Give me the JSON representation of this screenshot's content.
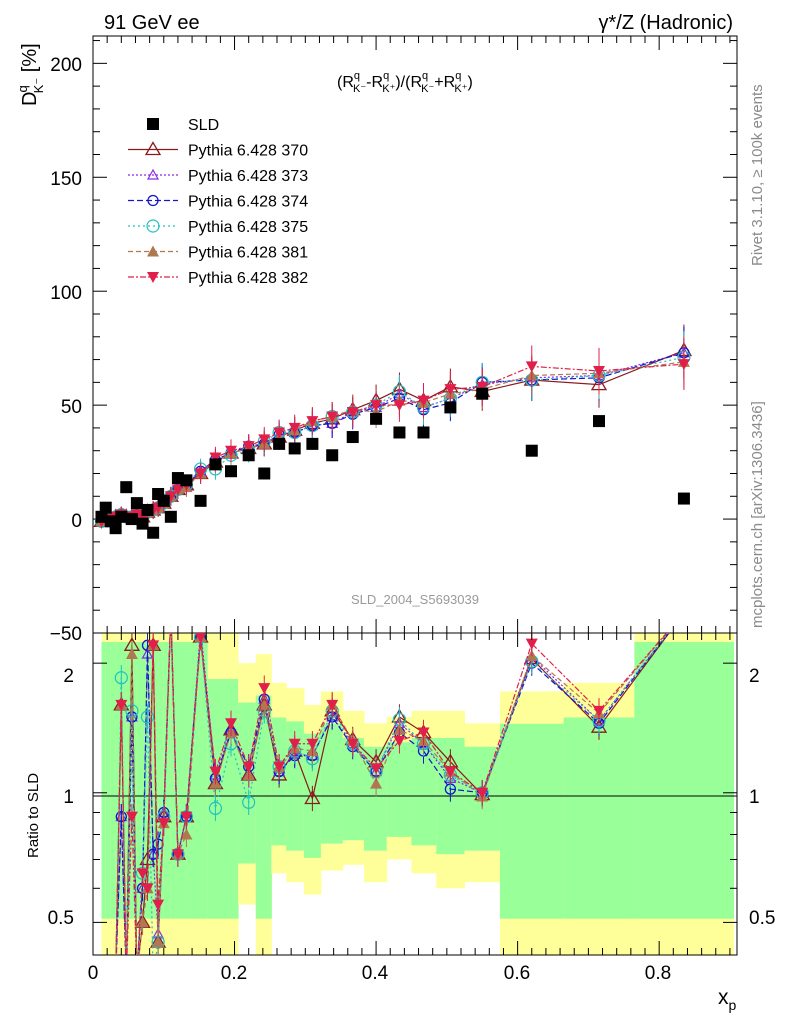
{
  "header": {
    "left": "91 GeV ee",
    "right": "γ*/Z (Hadronic)"
  },
  "side_labels": {
    "rivet": "Rivet 3.1.10, ≥ 100k events",
    "mcplots": "mcplots.cern.ch [arXiv:1306.3436]"
  },
  "main_plot": {
    "ylabel": "D",
    "ylabel_sup": "q",
    "ylabel_sub": "K⁻",
    "ylabel_unit": " [%]",
    "formula": "(R^q_K⁻-R^q_K⁺)/(R^q_K⁻+R^q_K⁺)",
    "formula_parts": [
      "(R",
      "q",
      "K⁻",
      "-R",
      "q",
      "K⁺",
      ")/(R",
      "q",
      "K⁻",
      "+R",
      "q",
      "K⁺",
      ")"
    ],
    "watermark": "SLD_2004_S5693039",
    "y_ticks": [
      "200",
      "150",
      "100",
      "50",
      "0",
      "−50"
    ]
  },
  "ratio_plot": {
    "ylabel": "Ratio to SLD",
    "y_ticks": [
      "2",
      "1",
      "0.5"
    ]
  },
  "x_axis": {
    "label": "x",
    "label_sub": "p",
    "ticks": [
      "0",
      "0.2",
      "0.4",
      "0.6",
      "0.8"
    ]
  },
  "legend": [
    {
      "name": "SLD",
      "color": "#000000",
      "marker": "square"
    },
    {
      "name": "Pythia 6.428 370",
      "color": "#8b1a1a",
      "marker": "triangle-open"
    },
    {
      "name": "Pythia 6.428 373",
      "color": "#8a2be2",
      "marker": "triangle-open-small"
    },
    {
      "name": "Pythia 6.428 374",
      "color": "#1515cc",
      "marker": "circle-open"
    },
    {
      "name": "Pythia 6.428 375",
      "color": "#20c0c0",
      "marker": "circle-open-large"
    },
    {
      "name": "Pythia 6.428 381",
      "color": "#b07850",
      "marker": "triangle-filled"
    },
    {
      "name": "Pythia 6.428 382",
      "color": "#e0204a",
      "marker": "triangle-down-filled"
    }
  ],
  "chart_data": [
    {
      "type": "scatter",
      "title": "(R^q_K⁻-R^q_K⁺)/(R^q_K⁻+R^q_K⁺)",
      "xlabel": "x_p",
      "ylabel": "D^q_K⁻ [%]",
      "xlim": [
        0,
        0.91
      ],
      "ylim": [
        -50,
        212
      ],
      "x": [
        0.012,
        0.018,
        0.025,
        0.032,
        0.04,
        0.047,
        0.055,
        0.062,
        0.07,
        0.077,
        0.085,
        0.092,
        0.1,
        0.11,
        0.12,
        0.132,
        0.152,
        0.173,
        0.195,
        0.22,
        0.242,
        0.263,
        0.285,
        0.31,
        0.338,
        0.367,
        0.4,
        0.433,
        0.467,
        0.505,
        0.55,
        0.62,
        0.715,
        0.835
      ],
      "series": [
        {
          "name": "SLD",
          "values": [
            1,
            5,
            -1,
            -4,
            1,
            14,
            0,
            7,
            -2,
            4,
            -6,
            11,
            8,
            1,
            18,
            17,
            8,
            24,
            21,
            28,
            20,
            33,
            31,
            33,
            28,
            36,
            44,
            38,
            38,
            49,
            55,
            30,
            43,
            9
          ]
        },
        {
          "name": "Pythia 6.428 370",
          "values": [
            -1,
            0,
            0,
            1,
            2,
            1,
            1,
            2,
            1,
            3,
            4,
            5,
            7,
            10,
            13,
            15,
            20,
            25,
            29,
            31,
            33,
            36,
            39,
            42,
            44,
            48,
            52,
            57,
            52,
            58,
            56,
            61,
            59,
            74
          ]
        },
        {
          "name": "Pythia 6.428 373",
          "values": [
            -1,
            0,
            0,
            1,
            2,
            1,
            1,
            2,
            1,
            3,
            4,
            5,
            7,
            10,
            13,
            15,
            21,
            26,
            29,
            31,
            33,
            37,
            38,
            41,
            42,
            47,
            49,
            55,
            49,
            53,
            59,
            62,
            63,
            73
          ]
        },
        {
          "name": "Pythia 6.428 374",
          "values": [
            -1,
            0,
            0,
            1,
            2,
            1,
            1,
            2,
            1,
            3,
            4,
            5,
            7,
            10,
            13,
            15,
            21,
            26,
            29,
            32,
            33,
            37,
            38,
            41,
            42,
            46,
            49,
            53,
            48,
            51,
            60,
            61,
            62,
            73
          ]
        },
        {
          "name": "Pythia 6.428 375",
          "values": [
            -1,
            0,
            0,
            1,
            2,
            1,
            1,
            2,
            1,
            3,
            4,
            5,
            7,
            10,
            13,
            15,
            22,
            22,
            28,
            30,
            34,
            38,
            38,
            41,
            45,
            47,
            50,
            56,
            49,
            53,
            60,
            61,
            63,
            71
          ]
        },
        {
          "name": "Pythia 6.428 381",
          "values": [
            -1,
            0,
            0,
            1,
            2,
            1,
            1,
            2,
            1,
            3,
            4,
            5,
            7,
            10,
            13,
            14,
            20,
            25,
            29,
            31,
            33,
            36,
            39,
            43,
            45,
            48,
            47,
            52,
            51,
            55,
            57,
            63,
            64,
            69
          ]
        },
        {
          "name": "Pythia 6.428 382",
          "values": [
            -1,
            0,
            0,
            1,
            2,
            1,
            1,
            2,
            1,
            3,
            4,
            5,
            7,
            10,
            13,
            15,
            20,
            27,
            30,
            32,
            35,
            38,
            40,
            43,
            45,
            47,
            50,
            50,
            52,
            57,
            58,
            67,
            65,
            68
          ]
        }
      ]
    },
    {
      "type": "line",
      "title": "Ratio to SLD",
      "xlabel": "x_p",
      "ylabel": "Ratio to SLD",
      "xlim": [
        0,
        0.91
      ],
      "ylim": [
        0.42,
        2.35
      ],
      "scale": "log",
      "x": [
        0.012,
        0.018,
        0.025,
        0.032,
        0.04,
        0.047,
        0.055,
        0.062,
        0.07,
        0.077,
        0.085,
        0.092,
        0.1,
        0.11,
        0.12,
        0.132,
        0.152,
        0.173,
        0.195,
        0.22,
        0.242,
        0.263,
        0.285,
        0.31,
        0.338,
        0.367,
        0.4,
        0.433,
        0.467,
        0.505,
        0.55,
        0.62,
        0.715,
        0.835
      ],
      "series": [
        {
          "name": "Pythia 6.428 370",
          "values": [
            null,
            null,
            null,
            0.1,
            1.6,
            0.1,
            2.2,
            0.3,
            0.5,
            0.7,
            2.2,
            0.45,
            0.88,
            3.0,
            0.72,
            0.88,
            2.3,
            1.05,
            1.4,
            1.1,
            1.6,
            1.1,
            1.25,
            0.97,
            1.55,
            1.33,
            1.18,
            1.5,
            1.38,
            1.18,
            0.99,
            2.05,
            1.42,
            3.0
          ]
        },
        {
          "name": "Pythia 6.428 373",
          "values": [
            null,
            null,
            null,
            0.1,
            0.88,
            0.1,
            1.5,
            0.3,
            0.6,
            2.1,
            0.72,
            0.47,
            0.9,
            3.0,
            0.72,
            0.88,
            2.4,
            1.1,
            1.4,
            1.1,
            1.65,
            1.12,
            1.23,
            1.22,
            1.5,
            1.3,
            1.12,
            1.45,
            1.3,
            1.08,
            1.0,
            2.07,
            1.47,
            3.0
          ]
        },
        {
          "name": "Pythia 6.428 374",
          "values": [
            null,
            null,
            null,
            0.1,
            0.88,
            0.1,
            1.5,
            0.3,
            0.6,
            2.2,
            0.72,
            0.76,
            0.9,
            3.0,
            0.72,
            0.88,
            2.3,
            1.08,
            1.38,
            1.15,
            1.65,
            1.12,
            1.22,
            1.22,
            1.5,
            1.28,
            1.12,
            1.38,
            1.25,
            1.02,
            1.0,
            2.0,
            1.45,
            3.0
          ]
        },
        {
          "name": "Pythia 6.428 375",
          "values": [
            null,
            null,
            null,
            0.1,
            1.85,
            0.1,
            1.55,
            0.3,
            0.65,
            1.5,
            0.36,
            0.45,
            0.88,
            3.0,
            0.72,
            0.88,
            2.3,
            0.92,
            1.3,
            0.95,
            1.55,
            1.15,
            1.25,
            1.2,
            1.55,
            1.3,
            1.12,
            1.48,
            1.3,
            1.1,
            1.0,
            2.02,
            1.47,
            3.0
          ]
        },
        {
          "name": "Pythia 6.428 381",
          "values": [
            null,
            null,
            null,
            0.1,
            1.6,
            0.1,
            2.1,
            0.3,
            0.5,
            0.6,
            2.2,
            0.45,
            0.85,
            3.0,
            0.72,
            0.8,
            2.3,
            1.05,
            1.38,
            1.1,
            1.6,
            1.15,
            1.27,
            1.25,
            1.6,
            1.32,
            1.05,
            1.4,
            1.32,
            1.12,
            0.98,
            2.08,
            1.53,
            3.0
          ]
        },
        {
          "name": "Pythia 6.428 382",
          "values": [
            null,
            null,
            null,
            0.1,
            1.6,
            0.1,
            0.88,
            0.3,
            0.65,
            0.6,
            2.2,
            0.55,
            0.85,
            3.0,
            0.72,
            0.88,
            2.3,
            1.12,
            1.45,
            1.15,
            1.75,
            1.15,
            1.3,
            1.3,
            1.6,
            1.3,
            1.14,
            1.32,
            1.38,
            1.12,
            1.0,
            2.22,
            1.55,
            3.0
          ]
        }
      ]
    }
  ]
}
